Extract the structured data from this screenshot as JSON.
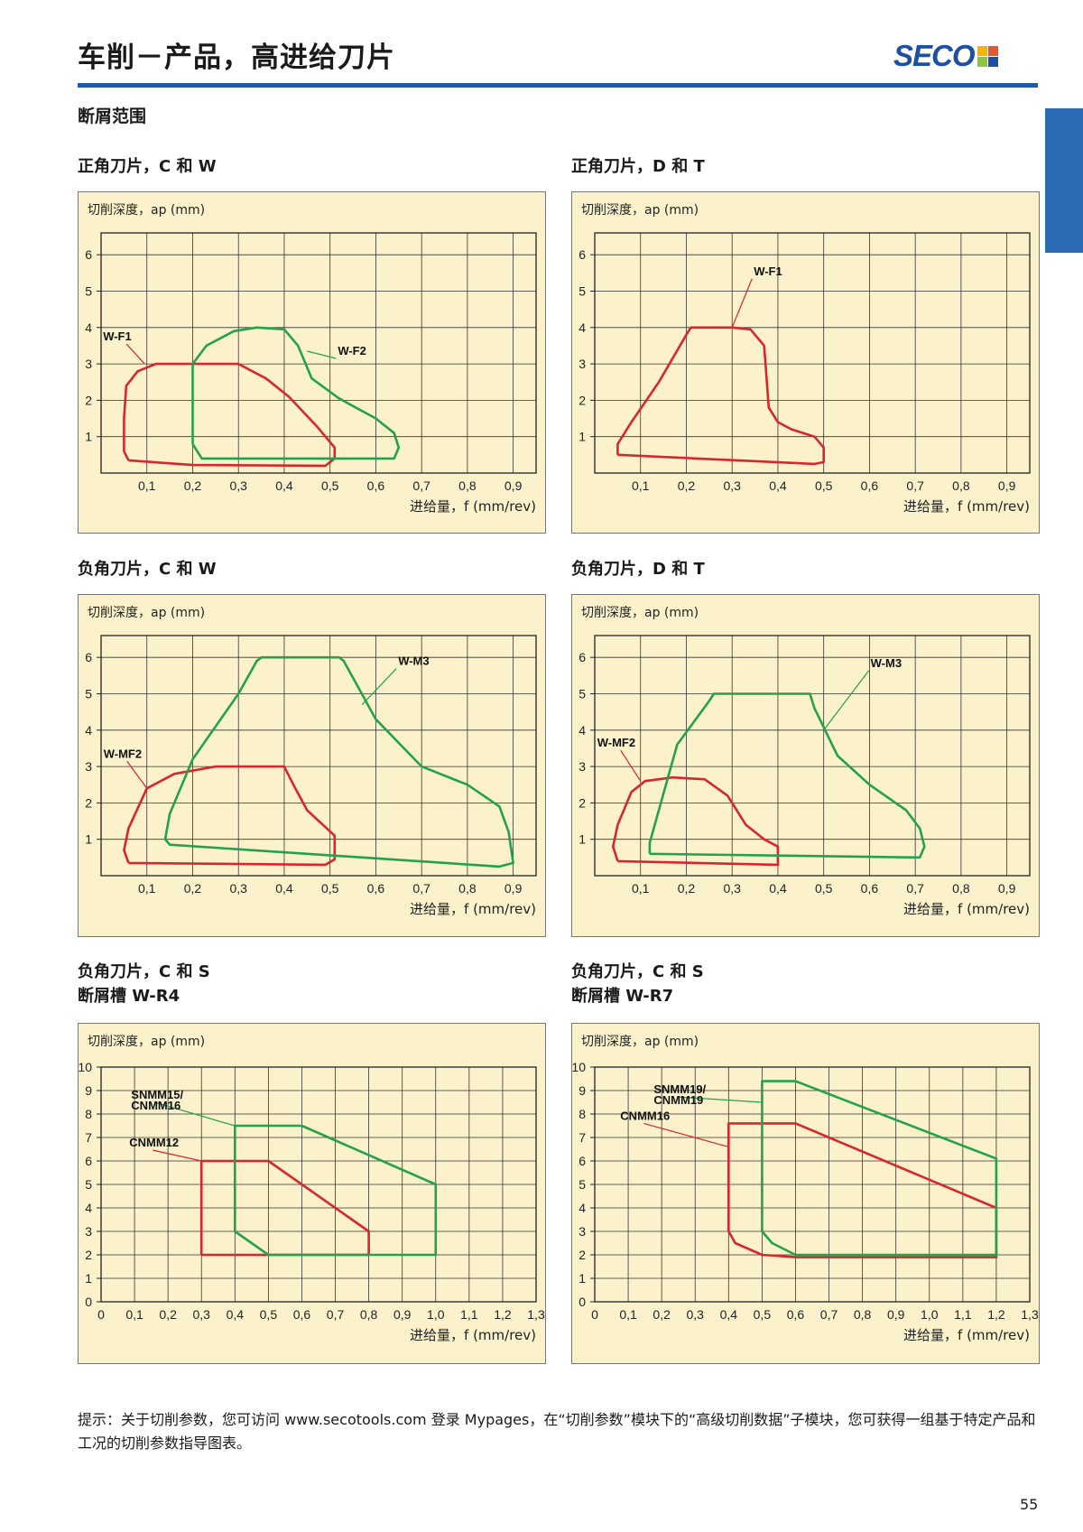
{
  "page": {
    "title": "车削－产品，高进给刀片",
    "section": "断屑范围",
    "footnote": "提示：关于切削参数，您可访问 www.secotools.com 登录 Mypages，在“切削参数”模块下的“高级切削数据”子模块，您可获得一组基于特定产品和工况的切削参数指导图表。",
    "page_number": "55"
  },
  "logo": {
    "text": "SECO",
    "colors": [
      "#f4b400",
      "#e4572e",
      "#1d4fa3",
      "#8cc63f"
    ]
  },
  "colors": {
    "red": "#d9262c",
    "green": "#23a24a",
    "accent": "#1f5aa8",
    "panel": "#fbf2cc"
  },
  "chart_data": [
    {
      "type": "area",
      "title": "正角刀片，C 和 W",
      "ylabel": "切削深度，ap (mm)",
      "xlabel": "进给量，f (mm/rev)",
      "xticks": [
        "0,1",
        "0,2",
        "0,3",
        "0,4",
        "0,5",
        "0,6",
        "0,7",
        "0,8",
        "0,9"
      ],
      "yticks": [
        "1",
        "2",
        "3",
        "4",
        "5",
        "6"
      ],
      "xlim": [
        0,
        0.95
      ],
      "ylim": [
        0,
        6.6
      ],
      "series": [
        {
          "name": "W-F1",
          "color": "red",
          "points": [
            [
              0.06,
              0.35
            ],
            [
              0.05,
              0.6
            ],
            [
              0.05,
              1.5
            ],
            [
              0.055,
              2.4
            ],
            [
              0.08,
              2.8
            ],
            [
              0.12,
              3.0
            ],
            [
              0.3,
              3.0
            ],
            [
              0.36,
              2.6
            ],
            [
              0.41,
              2.1
            ],
            [
              0.47,
              1.3
            ],
            [
              0.51,
              0.7
            ],
            [
              0.51,
              0.4
            ],
            [
              0.49,
              0.2
            ],
            [
              0.2,
              0.22
            ],
            [
              0.06,
              0.35
            ]
          ]
        },
        {
          "name": "W-F2",
          "color": "green",
          "points": [
            [
              0.2,
              0.8
            ],
            [
              0.2,
              1.9
            ],
            [
              0.2,
              3.0
            ],
            [
              0.23,
              3.5
            ],
            [
              0.29,
              3.9
            ],
            [
              0.34,
              4.0
            ],
            [
              0.4,
              3.95
            ],
            [
              0.43,
              3.5
            ],
            [
              0.46,
              2.6
            ],
            [
              0.52,
              2.05
            ],
            [
              0.6,
              1.5
            ],
            [
              0.64,
              1.1
            ],
            [
              0.65,
              0.7
            ],
            [
              0.64,
              0.4
            ],
            [
              0.22,
              0.4
            ],
            [
              0.2,
              0.8
            ]
          ]
        }
      ],
      "labels": [
        {
          "text": "W-F1",
          "series": 0,
          "anchor": [
            0.095,
            3.0
          ]
        },
        {
          "text": "W-F2",
          "series": 1,
          "anchor": [
            0.45,
            3.35
          ]
        }
      ]
    },
    {
      "type": "area",
      "title": "正角刀片，D 和 T",
      "ylabel": "切削深度，ap (mm)",
      "xlabel": "进给量，f (mm/rev)",
      "xticks": [
        "0,1",
        "0,2",
        "0,3",
        "0,4",
        "0,5",
        "0,6",
        "0,7",
        "0,8",
        "0,9"
      ],
      "yticks": [
        "1",
        "2",
        "3",
        "4",
        "5",
        "6"
      ],
      "xlim": [
        0,
        0.95
      ],
      "ylim": [
        0,
        6.6
      ],
      "series": [
        {
          "name": "W-F1",
          "color": "red",
          "points": [
            [
              0.05,
              0.5
            ],
            [
              0.05,
              0.8
            ],
            [
              0.08,
              1.4
            ],
            [
              0.14,
              2.5
            ],
            [
              0.2,
              3.8
            ],
            [
              0.21,
              4.0
            ],
            [
              0.3,
              4.0
            ],
            [
              0.34,
              3.95
            ],
            [
              0.37,
              3.5
            ],
            [
              0.38,
              1.8
            ],
            [
              0.4,
              1.4
            ],
            [
              0.43,
              1.2
            ],
            [
              0.48,
              1.0
            ],
            [
              0.5,
              0.7
            ],
            [
              0.5,
              0.3
            ],
            [
              0.48,
              0.25
            ],
            [
              0.05,
              0.5
            ]
          ]
        }
      ],
      "labels": [
        {
          "text": "W-F1",
          "series": 0,
          "anchor": [
            0.3,
            4.0
          ]
        }
      ]
    },
    {
      "type": "area",
      "title": "负角刀片，C 和 W",
      "ylabel": "切削深度，ap (mm)",
      "xlabel": "进给量，f (mm/rev)",
      "xticks": [
        "0,1",
        "0,2",
        "0,3",
        "0,4",
        "0,5",
        "0,6",
        "0,7",
        "0,8",
        "0,9"
      ],
      "yticks": [
        "1",
        "2",
        "3",
        "4",
        "5",
        "6"
      ],
      "xlim": [
        0,
        0.95
      ],
      "ylim": [
        0,
        6.6
      ],
      "series": [
        {
          "name": "W-MF2",
          "color": "red",
          "points": [
            [
              0.06,
              0.35
            ],
            [
              0.05,
              0.7
            ],
            [
              0.06,
              1.3
            ],
            [
              0.1,
              2.4
            ],
            [
              0.16,
              2.8
            ],
            [
              0.25,
              3.0
            ],
            [
              0.4,
              3.0
            ],
            [
              0.42,
              2.5
            ],
            [
              0.45,
              1.8
            ],
            [
              0.51,
              1.1
            ],
            [
              0.51,
              0.45
            ],
            [
              0.49,
              0.3
            ],
            [
              0.06,
              0.35
            ]
          ]
        },
        {
          "name": "W-M3",
          "color": "green",
          "points": [
            [
              0.14,
              1.0
            ],
            [
              0.15,
              1.7
            ],
            [
              0.2,
              3.2
            ],
            [
              0.3,
              5.0
            ],
            [
              0.34,
              5.9
            ],
            [
              0.35,
              6.0
            ],
            [
              0.52,
              6.0
            ],
            [
              0.53,
              5.9
            ],
            [
              0.6,
              4.3
            ],
            [
              0.7,
              3.0
            ],
            [
              0.8,
              2.5
            ],
            [
              0.87,
              1.9
            ],
            [
              0.89,
              1.2
            ],
            [
              0.9,
              0.35
            ],
            [
              0.87,
              0.25
            ],
            [
              0.15,
              0.85
            ],
            [
              0.14,
              1.0
            ]
          ]
        }
      ],
      "labels": [
        {
          "text": "W-MF2",
          "series": 0,
          "anchor": [
            0.1,
            2.4
          ]
        },
        {
          "text": "W-M3",
          "series": 1,
          "anchor": [
            0.57,
            4.7
          ]
        }
      ]
    },
    {
      "type": "area",
      "title": "负角刀片，D 和 T",
      "ylabel": "切削深度，ap (mm)",
      "xlabel": "进给量，f (mm/rev)",
      "xticks": [
        "0,1",
        "0,2",
        "0,3",
        "0,4",
        "0,5",
        "0,6",
        "0,7",
        "0,8",
        "0,9"
      ],
      "yticks": [
        "1",
        "2",
        "3",
        "4",
        "5",
        "6"
      ],
      "xlim": [
        0,
        0.95
      ],
      "ylim": [
        0,
        6.6
      ],
      "series": [
        {
          "name": "W-MF2",
          "color": "red",
          "points": [
            [
              0.05,
              0.4
            ],
            [
              0.04,
              0.8
            ],
            [
              0.05,
              1.4
            ],
            [
              0.08,
              2.3
            ],
            [
              0.11,
              2.6
            ],
            [
              0.17,
              2.7
            ],
            [
              0.24,
              2.65
            ],
            [
              0.29,
              2.2
            ],
            [
              0.33,
              1.4
            ],
            [
              0.37,
              1.0
            ],
            [
              0.4,
              0.8
            ],
            [
              0.4,
              0.3
            ],
            [
              0.05,
              0.4
            ]
          ]
        },
        {
          "name": "W-M3",
          "color": "green",
          "points": [
            [
              0.12,
              0.6
            ],
            [
              0.12,
              0.9
            ],
            [
              0.14,
              1.8
            ],
            [
              0.18,
              3.6
            ],
            [
              0.25,
              4.8
            ],
            [
              0.26,
              5.0
            ],
            [
              0.47,
              5.0
            ],
            [
              0.48,
              4.6
            ],
            [
              0.53,
              3.3
            ],
            [
              0.6,
              2.5
            ],
            [
              0.68,
              1.8
            ],
            [
              0.71,
              1.3
            ],
            [
              0.72,
              0.8
            ],
            [
              0.71,
              0.5
            ],
            [
              0.12,
              0.6
            ]
          ]
        }
      ],
      "labels": [
        {
          "text": "W-MF2",
          "series": 0,
          "anchor": [
            0.1,
            2.6
          ]
        },
        {
          "text": "W-M3",
          "series": 1,
          "anchor": [
            0.5,
            4.0
          ]
        }
      ]
    },
    {
      "type": "area",
      "title": "负角刀片，C 和 S",
      "subtitle": "断屑槽 W-R4",
      "ylabel": "切削深度，ap (mm)",
      "xlabel": "进给量，f (mm/rev)",
      "xticks": [
        "0",
        "0,1",
        "0,2",
        "0,3",
        "0,4",
        "0,5",
        "0,6",
        "0,7",
        "0,8",
        "0,9",
        "1,0",
        "1,1",
        "1,2",
        "1,3"
      ],
      "yticks": [
        "0",
        "1",
        "2",
        "3",
        "4",
        "5",
        "6",
        "7",
        "8",
        "9",
        "10"
      ],
      "xlim": [
        0,
        1.3
      ],
      "ylim": [
        0,
        10
      ],
      "series": [
        {
          "name": "CNMM12",
          "color": "red",
          "points": [
            [
              0.3,
              2.0
            ],
            [
              0.3,
              6.0
            ],
            [
              0.5,
              6.0
            ],
            [
              0.8,
              3.0
            ],
            [
              0.8,
              2.0
            ],
            [
              0.3,
              2.0
            ]
          ]
        },
        {
          "name": "SNMM15/ CNMM16",
          "color": "green",
          "points": [
            [
              0.4,
              3.0
            ],
            [
              0.4,
              7.5
            ],
            [
              0.6,
              7.5
            ],
            [
              1.0,
              5.0
            ],
            [
              1.0,
              2.0
            ],
            [
              0.5,
              2.0
            ],
            [
              0.4,
              3.0
            ]
          ]
        }
      ],
      "labels": [
        {
          "text": "CNMM12",
          "series": 0,
          "anchor": [
            0.3,
            6.0
          ]
        },
        {
          "text": "SNMM15/",
          "series": 1,
          "anchor": [
            0.4,
            7.5
          ]
        },
        {
          "text": "CNMM16",
          "series": 1,
          "anchor": null
        }
      ]
    },
    {
      "type": "area",
      "title": "负角刀片，C 和 S",
      "subtitle": "断屑槽 W-R7",
      "ylabel": "切削深度，ap (mm)",
      "xlabel": "进给量，f (mm/rev)",
      "xticks": [
        "0",
        "0,1",
        "0,2",
        "0,3",
        "0,4",
        "0,5",
        "0,6",
        "0,7",
        "0,8",
        "0,9",
        "1,0",
        "1,1",
        "1,2",
        "1,3"
      ],
      "yticks": [
        "0",
        "1",
        "2",
        "3",
        "4",
        "5",
        "6",
        "7",
        "8",
        "9",
        "10"
      ],
      "xlim": [
        0,
        1.3
      ],
      "ylim": [
        0,
        10
      ],
      "series": [
        {
          "name": "CNMM16",
          "color": "red",
          "points": [
            [
              0.4,
              3.0
            ],
            [
              0.4,
              7.6
            ],
            [
              0.6,
              7.6
            ],
            [
              1.2,
              4.0
            ],
            [
              1.2,
              1.9
            ],
            [
              0.6,
              1.9
            ],
            [
              0.5,
              2.0
            ],
            [
              0.42,
              2.5
            ],
            [
              0.4,
              3.0
            ]
          ]
        },
        {
          "name": "SNMM19/ CNMM19",
          "color": "green",
          "points": [
            [
              0.5,
              3.0
            ],
            [
              0.5,
              9.4
            ],
            [
              0.6,
              9.4
            ],
            [
              1.2,
              6.1
            ],
            [
              1.2,
              2.0
            ],
            [
              0.6,
              2.0
            ],
            [
              0.53,
              2.5
            ],
            [
              0.5,
              3.0
            ]
          ]
        }
      ],
      "labels": [
        {
          "text": "CNMM16",
          "series": 0,
          "anchor": [
            0.4,
            6.6
          ]
        },
        {
          "text": "SNMM19/",
          "series": 1,
          "anchor": [
            0.5,
            8.5
          ]
        },
        {
          "text": "CNMM19",
          "series": 1,
          "anchor": null
        }
      ]
    }
  ]
}
